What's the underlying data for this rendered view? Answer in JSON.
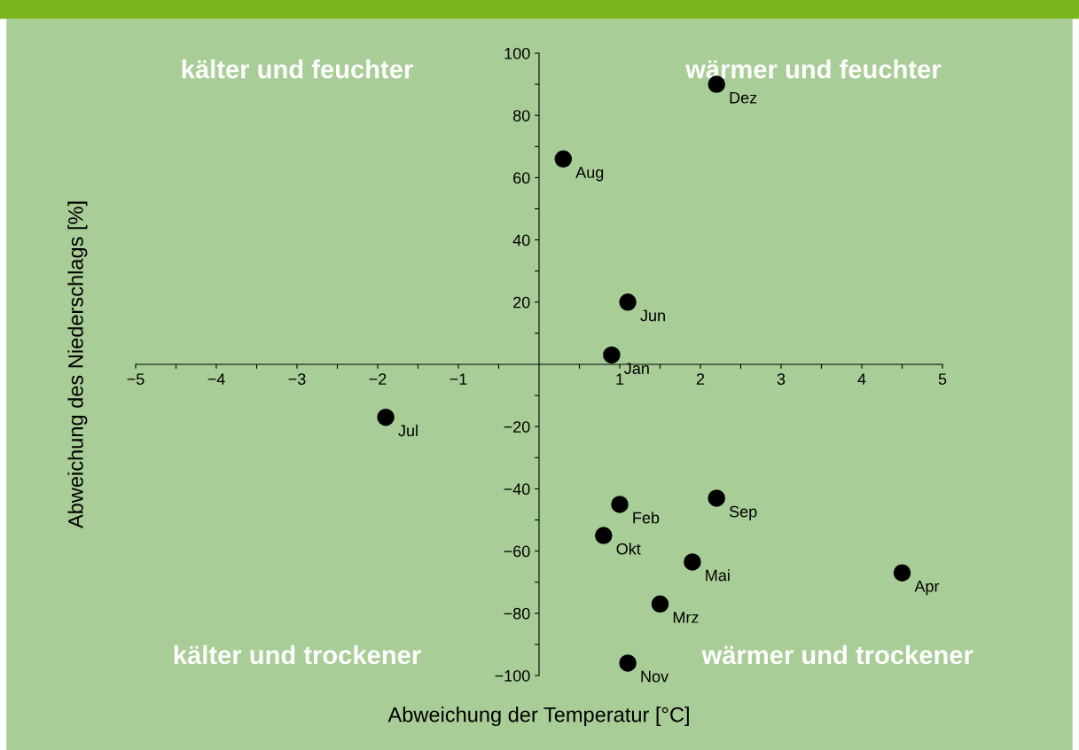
{
  "chart_data": {
    "type": "scatter",
    "xlabel": "Abweichung der Temperatur [°C]",
    "ylabel": "Abweichung des Niederschlags [%]",
    "series": [
      {
        "color": "#000000",
        "x": [
          0.9,
          1.0,
          1.5,
          4.5,
          1.9,
          1.1,
          -1.9,
          0.3,
          2.2,
          0.8,
          1.1,
          2.2
        ],
        "values": [
          3,
          -45,
          -77,
          -67,
          -63.5,
          20,
          -17,
          66,
          -43,
          -55,
          -96,
          90
        ]
      }
    ],
    "marker": "circle",
    "grid": false,
    "legend": false,
    "xlim": [
      -5,
      5
    ],
    "ylim": [
      -100,
      100
    ],
    "xticks": [
      {
        "value": -5,
        "label": "−5"
      },
      {
        "value": -4.5,
        "label": null
      },
      {
        "value": -4,
        "label": "−4"
      },
      {
        "value": -3.5,
        "label": null
      },
      {
        "value": -3,
        "label": "−3"
      },
      {
        "value": -2.5,
        "label": null
      },
      {
        "value": -2,
        "label": "−2"
      },
      {
        "value": -1.5,
        "label": null
      },
      {
        "value": -1,
        "label": "−1"
      },
      {
        "value": -0.5,
        "label": null
      },
      {
        "value": 0.5,
        "label": null
      },
      1,
      {
        "value": 1.5,
        "label": null
      },
      2,
      {
        "value": 2.5,
        "label": null
      },
      3,
      {
        "value": 3.5,
        "label": null
      },
      4,
      {
        "value": 4.5,
        "label": null
      },
      5
    ],
    "yticks": [
      {
        "value": -100,
        "label": "−100"
      },
      {
        "value": -90,
        "label": null
      },
      {
        "value": -80,
        "label": "−80"
      },
      {
        "value": -70,
        "label": null
      },
      {
        "value": -60,
        "label": "−60"
      },
      {
        "value": -50,
        "label": null
      },
      {
        "value": -40,
        "label": "−40"
      },
      {
        "value": -30,
        "label": null
      },
      {
        "value": -20,
        "label": "−20"
      },
      {
        "value": -10,
        "label": null
      },
      {
        "value": 10,
        "label": null
      },
      20,
      {
        "value": 30,
        "label": null
      },
      40,
      {
        "value": 50,
        "label": null
      },
      60,
      {
        "value": 70,
        "label": null
      },
      80,
      {
        "value": 90,
        "label": null
      },
      100
    ],
    "annotations": [
      "kälter und feuchter",
      "wärmer und feuchter",
      "kälter und trockener",
      "wärmer und trockener",
      {
        "text": "Jan",
        "x": 0.9,
        "y": 3
      },
      {
        "text": "Feb",
        "x": 1.0,
        "y": -45
      },
      {
        "text": "Mrz",
        "x": 1.5,
        "y": -77
      },
      {
        "text": "Apr",
        "x": 4.5,
        "y": -67
      },
      {
        "text": "Mai",
        "x": 1.9,
        "y": -63.5
      },
      {
        "text": "Jun",
        "x": 1.1,
        "y": 20
      },
      {
        "text": "Jul",
        "x": -1.9,
        "y": -17
      },
      {
        "text": "Aug",
        "x": 0.3,
        "y": 66
      },
      {
        "text": "Sep",
        "x": 2.2,
        "y": -43
      },
      {
        "text": "Okt",
        "x": 0.8,
        "y": -55
      },
      {
        "text": "Nov",
        "x": 1.1,
        "y": -96
      },
      {
        "text": "Dez",
        "x": 2.2,
        "y": 90
      }
    ]
  }
}
